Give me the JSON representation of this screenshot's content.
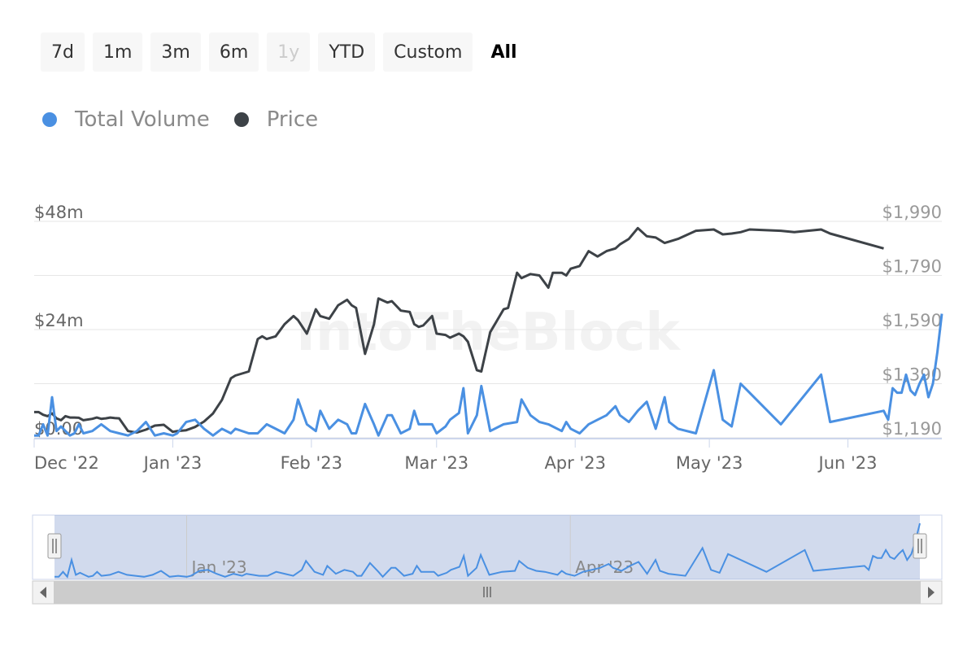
{
  "range_selector": {
    "buttons": [
      {
        "label": "7d",
        "state": "normal"
      },
      {
        "label": "1m",
        "state": "normal"
      },
      {
        "label": "3m",
        "state": "normal"
      },
      {
        "label": "6m",
        "state": "normal"
      },
      {
        "label": "1y",
        "state": "disabled"
      },
      {
        "label": "YTD",
        "state": "normal"
      },
      {
        "label": "Custom",
        "state": "normal"
      },
      {
        "label": "All",
        "state": "active"
      }
    ]
  },
  "legend": {
    "items": [
      {
        "label": "Total Volume",
        "color": "#4a90e2"
      },
      {
        "label": "Price",
        "color": "#3d4247"
      }
    ]
  },
  "watermark": "IntoTheBlock",
  "chart_data": {
    "type": "line",
    "grid": true,
    "legend_position": "top-left",
    "x_axis": {
      "labels": [
        {
          "date": "2022-12-01",
          "label": "Dec '22"
        },
        {
          "date": "2023-01-01",
          "label": "Jan '23"
        },
        {
          "date": "2023-02-01",
          "label": "Feb '23"
        },
        {
          "date": "2023-03-01",
          "label": "Mar '23"
        },
        {
          "date": "2023-04-01",
          "label": "Apr '23"
        },
        {
          "date": "2023-05-01",
          "label": "May '23"
        },
        {
          "date": "2023-06-01",
          "label": "Jun '23"
        }
      ],
      "range": [
        "2022-12-01",
        "2023-06-22"
      ]
    },
    "y_left": {
      "ticks": [
        {
          "value": 0,
          "label": "$0.00"
        },
        {
          "value": 24,
          "label": "$24m"
        },
        {
          "value": 48,
          "label": "$48m"
        }
      ],
      "range": [
        0,
        48
      ],
      "unit": "millions USD"
    },
    "y_right": {
      "ticks": [
        {
          "value": 1190,
          "label": "$1,190"
        },
        {
          "value": 1390,
          "label": "$1,390"
        },
        {
          "value": 1590,
          "label": "$1,590"
        },
        {
          "value": 1790,
          "label": "$1,790"
        },
        {
          "value": 1990,
          "label": "$1,990"
        }
      ],
      "range": [
        1190,
        1990
      ]
    },
    "series": [
      {
        "name": "Total Volume",
        "axis": "left",
        "color": "#4a90e2",
        "points": [
          [
            "2022-12-01",
            0.5
          ],
          [
            "2022-12-02",
            0.5
          ],
          [
            "2022-12-03",
            3
          ],
          [
            "2022-12-04",
            0.5
          ],
          [
            "2022-12-05",
            9
          ],
          [
            "2022-12-06",
            1.5
          ],
          [
            "2022-12-07",
            2.5
          ],
          [
            "2022-12-08",
            1.5
          ],
          [
            "2022-12-09",
            0.5
          ],
          [
            "2022-12-10",
            1
          ],
          [
            "2022-12-11",
            3
          ],
          [
            "2022-12-12",
            1
          ],
          [
            "2022-12-14",
            1.5
          ],
          [
            "2022-12-16",
            3
          ],
          [
            "2022-12-18",
            1.5
          ],
          [
            "2022-12-20",
            1
          ],
          [
            "2022-12-22",
            0.5
          ],
          [
            "2022-12-24",
            1.5
          ],
          [
            "2022-12-26",
            3.5
          ],
          [
            "2022-12-28",
            0.5
          ],
          [
            "2022-12-30",
            1
          ],
          [
            "2023-01-01",
            0.5
          ],
          [
            "2023-01-02",
            1
          ],
          [
            "2023-01-04",
            3.5
          ],
          [
            "2023-01-06",
            4
          ],
          [
            "2023-01-08",
            2
          ],
          [
            "2023-01-10",
            0.5
          ],
          [
            "2023-01-12",
            2
          ],
          [
            "2023-01-14",
            1
          ],
          [
            "2023-01-15",
            2
          ],
          [
            "2023-01-18",
            1
          ],
          [
            "2023-01-20",
            1
          ],
          [
            "2023-01-22",
            3
          ],
          [
            "2023-01-24",
            2
          ],
          [
            "2023-01-26",
            1
          ],
          [
            "2023-01-28",
            4
          ],
          [
            "2023-01-29",
            8.5
          ],
          [
            "2023-01-31",
            3
          ],
          [
            "2023-02-02",
            1.5
          ],
          [
            "2023-02-03",
            6
          ],
          [
            "2023-02-05",
            2
          ],
          [
            "2023-02-07",
            4
          ],
          [
            "2023-02-09",
            3
          ],
          [
            "2023-02-10",
            1
          ],
          [
            "2023-02-11",
            1
          ],
          [
            "2023-02-13",
            7.5
          ],
          [
            "2023-02-15",
            3
          ],
          [
            "2023-02-16",
            0.5
          ],
          [
            "2023-02-18",
            5
          ],
          [
            "2023-02-19",
            5
          ],
          [
            "2023-02-21",
            1
          ],
          [
            "2023-02-23",
            2
          ],
          [
            "2023-02-24",
            6
          ],
          [
            "2023-02-25",
            3
          ],
          [
            "2023-02-26",
            3
          ],
          [
            "2023-02-28",
            3
          ],
          [
            "2023-03-01",
            1
          ],
          [
            "2023-03-03",
            2.5
          ],
          [
            "2023-03-04",
            4
          ],
          [
            "2023-03-06",
            5.5
          ],
          [
            "2023-03-07",
            11
          ],
          [
            "2023-03-08",
            1
          ],
          [
            "2023-03-10",
            5
          ],
          [
            "2023-03-11",
            11.5
          ],
          [
            "2023-03-13",
            1.5
          ],
          [
            "2023-03-16",
            3
          ],
          [
            "2023-03-19",
            3.5
          ],
          [
            "2023-03-20",
            8.5
          ],
          [
            "2023-03-22",
            5
          ],
          [
            "2023-03-24",
            3.5
          ],
          [
            "2023-03-26",
            3
          ],
          [
            "2023-03-29",
            1.5
          ],
          [
            "2023-03-30",
            3.5
          ],
          [
            "2023-03-31",
            2
          ],
          [
            "2023-04-02",
            1
          ],
          [
            "2023-04-04",
            3
          ],
          [
            "2023-04-06",
            4
          ],
          [
            "2023-04-08",
            5
          ],
          [
            "2023-04-10",
            7
          ],
          [
            "2023-04-11",
            5
          ],
          [
            "2023-04-13",
            3.5
          ],
          [
            "2023-04-15",
            6
          ],
          [
            "2023-04-17",
            8
          ],
          [
            "2023-04-19",
            2
          ],
          [
            "2023-04-21",
            9
          ],
          [
            "2023-04-22",
            3.5
          ],
          [
            "2023-04-24",
            2
          ],
          [
            "2023-04-28",
            1
          ],
          [
            "2023-05-02",
            15
          ],
          [
            "2023-05-04",
            4
          ],
          [
            "2023-05-06",
            2.5
          ],
          [
            "2023-05-08",
            12
          ],
          [
            "2023-05-10",
            10
          ],
          [
            "2023-05-17",
            3
          ],
          [
            "2023-05-26",
            14
          ],
          [
            "2023-05-28",
            3.5
          ],
          [
            "2023-06-09",
            6
          ],
          [
            "2023-06-10",
            4
          ],
          [
            "2023-06-11",
            11
          ],
          [
            "2023-06-12",
            10
          ],
          [
            "2023-06-13",
            10
          ],
          [
            "2023-06-14",
            14
          ],
          [
            "2023-06-15",
            10.5
          ],
          [
            "2023-06-16",
            9.5
          ],
          [
            "2023-06-17",
            12
          ],
          [
            "2023-06-18",
            14
          ],
          [
            "2023-06-19",
            9
          ],
          [
            "2023-06-20",
            12
          ],
          [
            "2023-06-21",
            19
          ],
          [
            "2023-06-22",
            27.5
          ]
        ]
      },
      {
        "name": "Price",
        "axis": "right",
        "color": "#3d4247",
        "points": [
          [
            "2022-12-01",
            1285
          ],
          [
            "2022-12-02",
            1285
          ],
          [
            "2022-12-03",
            1275
          ],
          [
            "2022-12-04",
            1270
          ],
          [
            "2022-12-05",
            1280
          ],
          [
            "2022-12-06",
            1262
          ],
          [
            "2022-12-07",
            1255
          ],
          [
            "2022-12-08",
            1270
          ],
          [
            "2022-12-09",
            1265
          ],
          [
            "2022-12-10",
            1265
          ],
          [
            "2022-12-11",
            1264
          ],
          [
            "2022-12-12",
            1255
          ],
          [
            "2022-12-14",
            1260
          ],
          [
            "2022-12-15",
            1265
          ],
          [
            "2022-12-16",
            1260
          ],
          [
            "2022-12-17",
            1262
          ],
          [
            "2022-12-18",
            1265
          ],
          [
            "2022-12-19",
            1263
          ],
          [
            "2022-12-20",
            1262
          ],
          [
            "2022-12-22",
            1215
          ],
          [
            "2022-12-23",
            1212
          ],
          [
            "2022-12-24",
            1210
          ],
          [
            "2022-12-26",
            1220
          ],
          [
            "2022-12-28",
            1235
          ],
          [
            "2022-12-30",
            1238
          ],
          [
            "2023-01-01",
            1212
          ],
          [
            "2023-01-02",
            1215
          ],
          [
            "2023-01-04",
            1218
          ],
          [
            "2023-01-06",
            1230
          ],
          [
            "2023-01-08",
            1250
          ],
          [
            "2023-01-10",
            1280
          ],
          [
            "2023-01-12",
            1330
          ],
          [
            "2023-01-14",
            1410
          ],
          [
            "2023-01-15",
            1420
          ],
          [
            "2023-01-18",
            1435
          ],
          [
            "2023-01-20",
            1555
          ],
          [
            "2023-01-21",
            1565
          ],
          [
            "2023-01-22",
            1555
          ],
          [
            "2023-01-24",
            1565
          ],
          [
            "2023-01-26",
            1610
          ],
          [
            "2023-01-28",
            1640
          ],
          [
            "2023-01-29",
            1625
          ],
          [
            "2023-01-31",
            1575
          ],
          [
            "2023-02-02",
            1665
          ],
          [
            "2023-02-03",
            1640
          ],
          [
            "2023-02-05",
            1630
          ],
          [
            "2023-02-07",
            1680
          ],
          [
            "2023-02-09",
            1700
          ],
          [
            "2023-02-10",
            1680
          ],
          [
            "2023-02-11",
            1670
          ],
          [
            "2023-02-13",
            1500
          ],
          [
            "2023-02-15",
            1610
          ],
          [
            "2023-02-16",
            1705
          ],
          [
            "2023-02-18",
            1690
          ],
          [
            "2023-02-19",
            1695
          ],
          [
            "2023-02-21",
            1660
          ],
          [
            "2023-02-23",
            1655
          ],
          [
            "2023-02-24",
            1610
          ],
          [
            "2023-02-25",
            1600
          ],
          [
            "2023-02-26",
            1605
          ],
          [
            "2023-02-28",
            1640
          ],
          [
            "2023-03-01",
            1575
          ],
          [
            "2023-03-03",
            1570
          ],
          [
            "2023-03-04",
            1560
          ],
          [
            "2023-03-06",
            1575
          ],
          [
            "2023-03-07",
            1565
          ],
          [
            "2023-03-08",
            1545
          ],
          [
            "2023-03-10",
            1440
          ],
          [
            "2023-03-11",
            1435
          ],
          [
            "2023-03-13",
            1580
          ],
          [
            "2023-03-16",
            1665
          ],
          [
            "2023-03-17",
            1670
          ],
          [
            "2023-03-19",
            1800
          ],
          [
            "2023-03-20",
            1780
          ],
          [
            "2023-03-22",
            1795
          ],
          [
            "2023-03-24",
            1790
          ],
          [
            "2023-03-26",
            1745
          ],
          [
            "2023-03-27",
            1800
          ],
          [
            "2023-03-29",
            1800
          ],
          [
            "2023-03-30",
            1790
          ],
          [
            "2023-03-31",
            1815
          ],
          [
            "2023-04-02",
            1825
          ],
          [
            "2023-04-04",
            1880
          ],
          [
            "2023-04-06",
            1860
          ],
          [
            "2023-04-08",
            1880
          ],
          [
            "2023-04-10",
            1890
          ],
          [
            "2023-04-11",
            1905
          ],
          [
            "2023-04-13",
            1925
          ],
          [
            "2023-04-15",
            1965
          ],
          [
            "2023-04-17",
            1935
          ],
          [
            "2023-04-19",
            1930
          ],
          [
            "2023-04-21",
            1910
          ],
          [
            "2023-04-22",
            1915
          ],
          [
            "2023-04-24",
            1925
          ],
          [
            "2023-04-28",
            1955
          ],
          [
            "2023-05-02",
            1960
          ],
          [
            "2023-05-04",
            1942
          ],
          [
            "2023-05-06",
            1945
          ],
          [
            "2023-05-08",
            1950
          ],
          [
            "2023-05-10",
            1960
          ],
          [
            "2023-05-17",
            1955
          ],
          [
            "2023-05-20",
            1950
          ],
          [
            "2023-05-26",
            1960
          ],
          [
            "2023-05-28",
            1945
          ],
          [
            "2023-06-09",
            1890
          ]
        ]
      }
    ],
    "navigator": {
      "x_labels": [
        "Jan '23",
        "Apr '23"
      ],
      "series": "Total Volume"
    }
  }
}
